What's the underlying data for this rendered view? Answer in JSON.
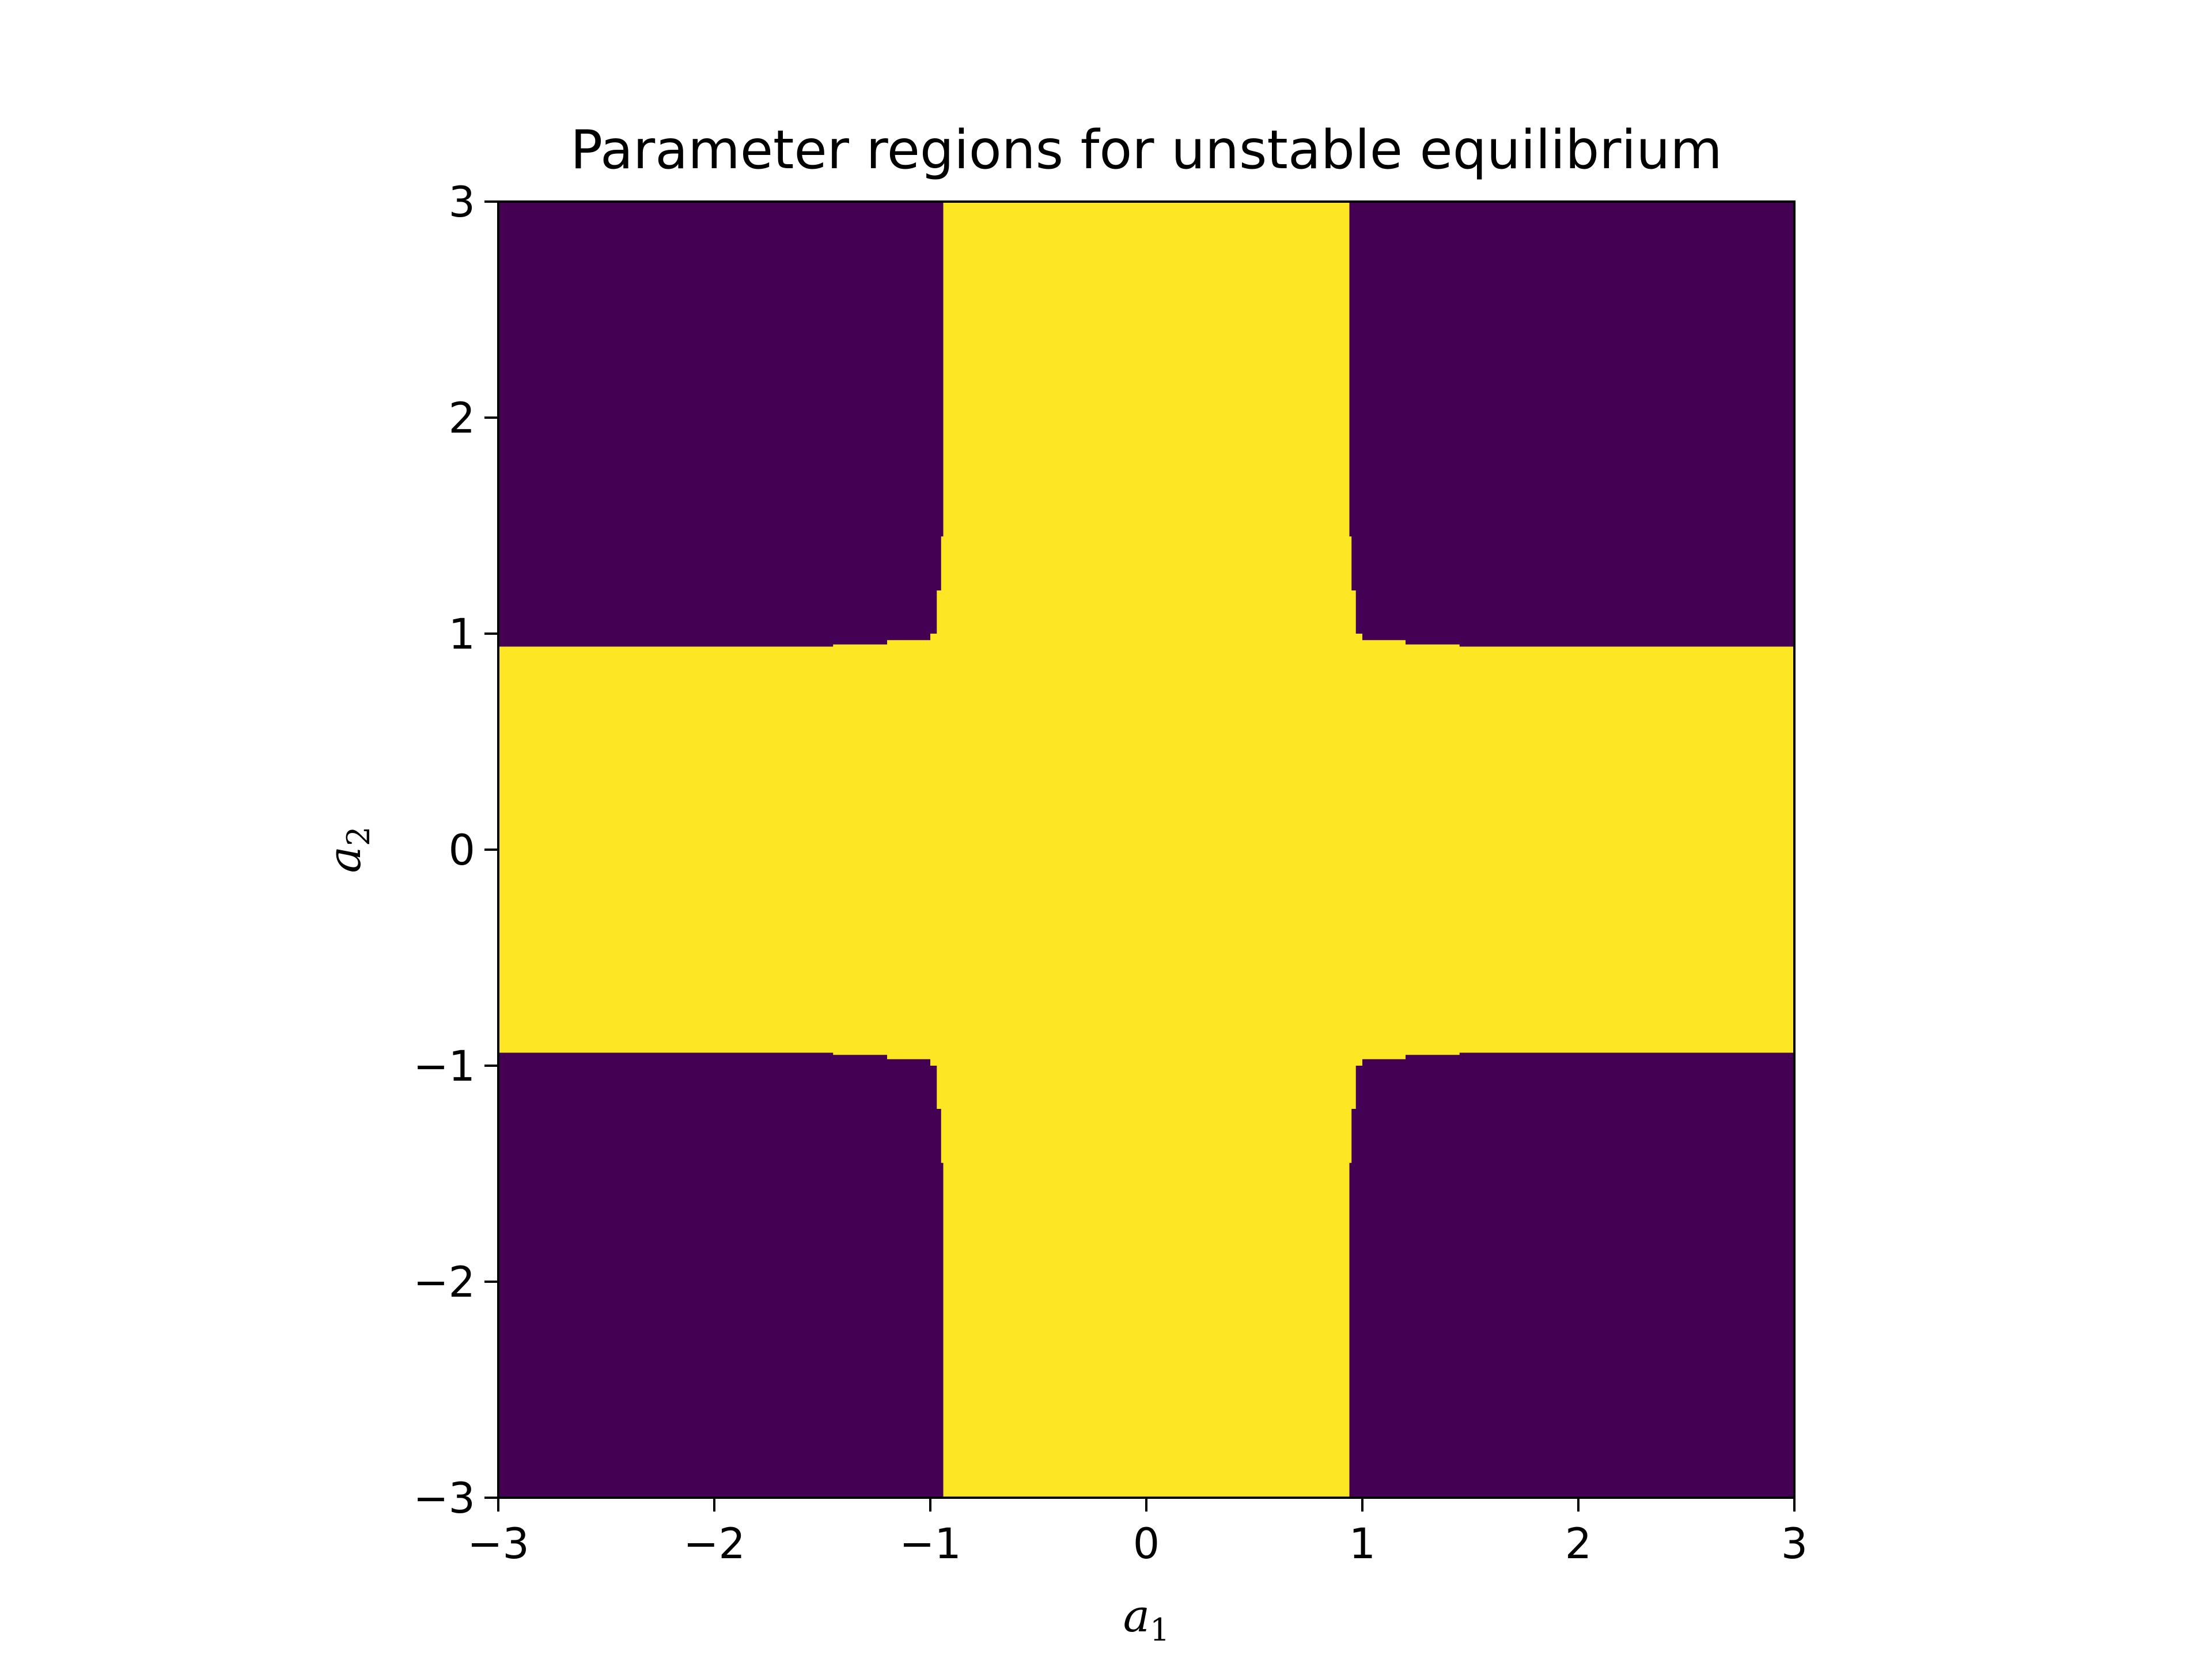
{
  "chart_data": {
    "type": "heatmap",
    "title": "Parameter regions for unstable equilibrium",
    "xlabel": {
      "base": "a",
      "sub": "1"
    },
    "ylabel": {
      "base": "a",
      "sub": "2"
    },
    "xlim": [
      -3,
      3
    ],
    "ylim": [
      -3,
      3
    ],
    "xticks": [
      -3,
      -2,
      -1,
      0,
      1,
      2,
      3
    ],
    "yticks": [
      -3,
      -2,
      -1,
      0,
      1,
      2,
      3
    ],
    "xtick_labels": [
      "−3",
      "−2",
      "−1",
      "0",
      "1",
      "2",
      "3"
    ],
    "ytick_labels": [
      "−3",
      "−2",
      "−1",
      "0",
      "1",
      "2",
      "3"
    ],
    "colormap": "viridis",
    "colors": {
      "unstable": "#fde725",
      "stable": "#440154"
    },
    "grid": false,
    "legend": "none",
    "regions": {
      "vertical_band_halfwidth": 0.94,
      "horizontal_band_halfwidth": 0.94,
      "corner_boundary_steps": [
        {
          "a_far": 1.45,
          "a_near": 0.95
        },
        {
          "a_far": 1.2,
          "a_near": 0.97
        },
        {
          "a_far": 1.0,
          "a_near": 1.0
        }
      ]
    }
  }
}
